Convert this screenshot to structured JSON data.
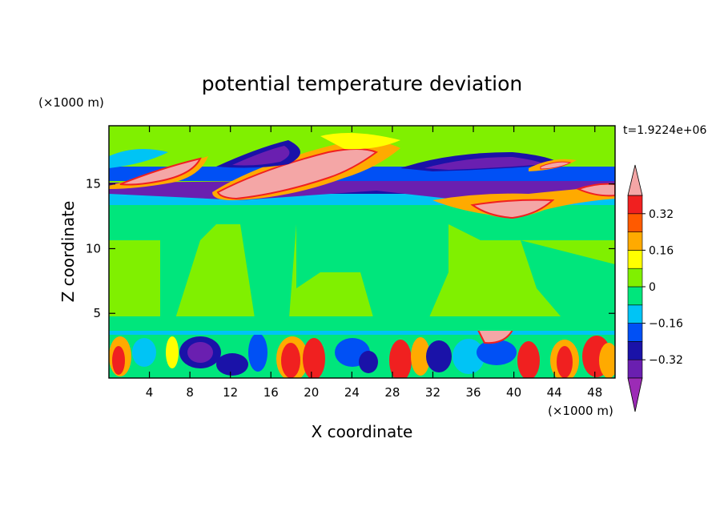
{
  "chart_data": {
    "type": "heatmap",
    "title": "potential temperature deviation",
    "xlabel": "X coordinate",
    "ylabel": "Z coordinate",
    "x_unit": "(×1000 m)",
    "y_unit": "(×1000 m)",
    "time_label": "t=1.9224e+06",
    "xlim": [
      0,
      50
    ],
    "ylim": [
      0,
      19.5
    ],
    "x_ticks": [
      4,
      8,
      12,
      16,
      20,
      24,
      28,
      32,
      36,
      40,
      44,
      48
    ],
    "y_ticks": [
      5,
      10,
      15
    ],
    "colorbar": {
      "levels": [
        -0.4,
        -0.32,
        -0.24,
        -0.16,
        -0.08,
        0,
        0.08,
        0.16,
        0.24,
        0.32,
        0.4
      ],
      "labels": [
        "0.32",
        "0.16",
        "0",
        "−0.16",
        "−0.32"
      ],
      "label_values": [
        0.32,
        0.16,
        0,
        -0.16,
        -0.32
      ],
      "colors": [
        "#9c2bb6",
        "#6a1fb0",
        "#1a12a8",
        "#0050f5",
        "#00c4f5",
        "#00e67c",
        "#80f000",
        "#ffff00",
        "#ffaa00",
        "#ff5a00",
        "#f02020",
        "#f4a6a6"
      ],
      "extends": "both"
    }
  }
}
